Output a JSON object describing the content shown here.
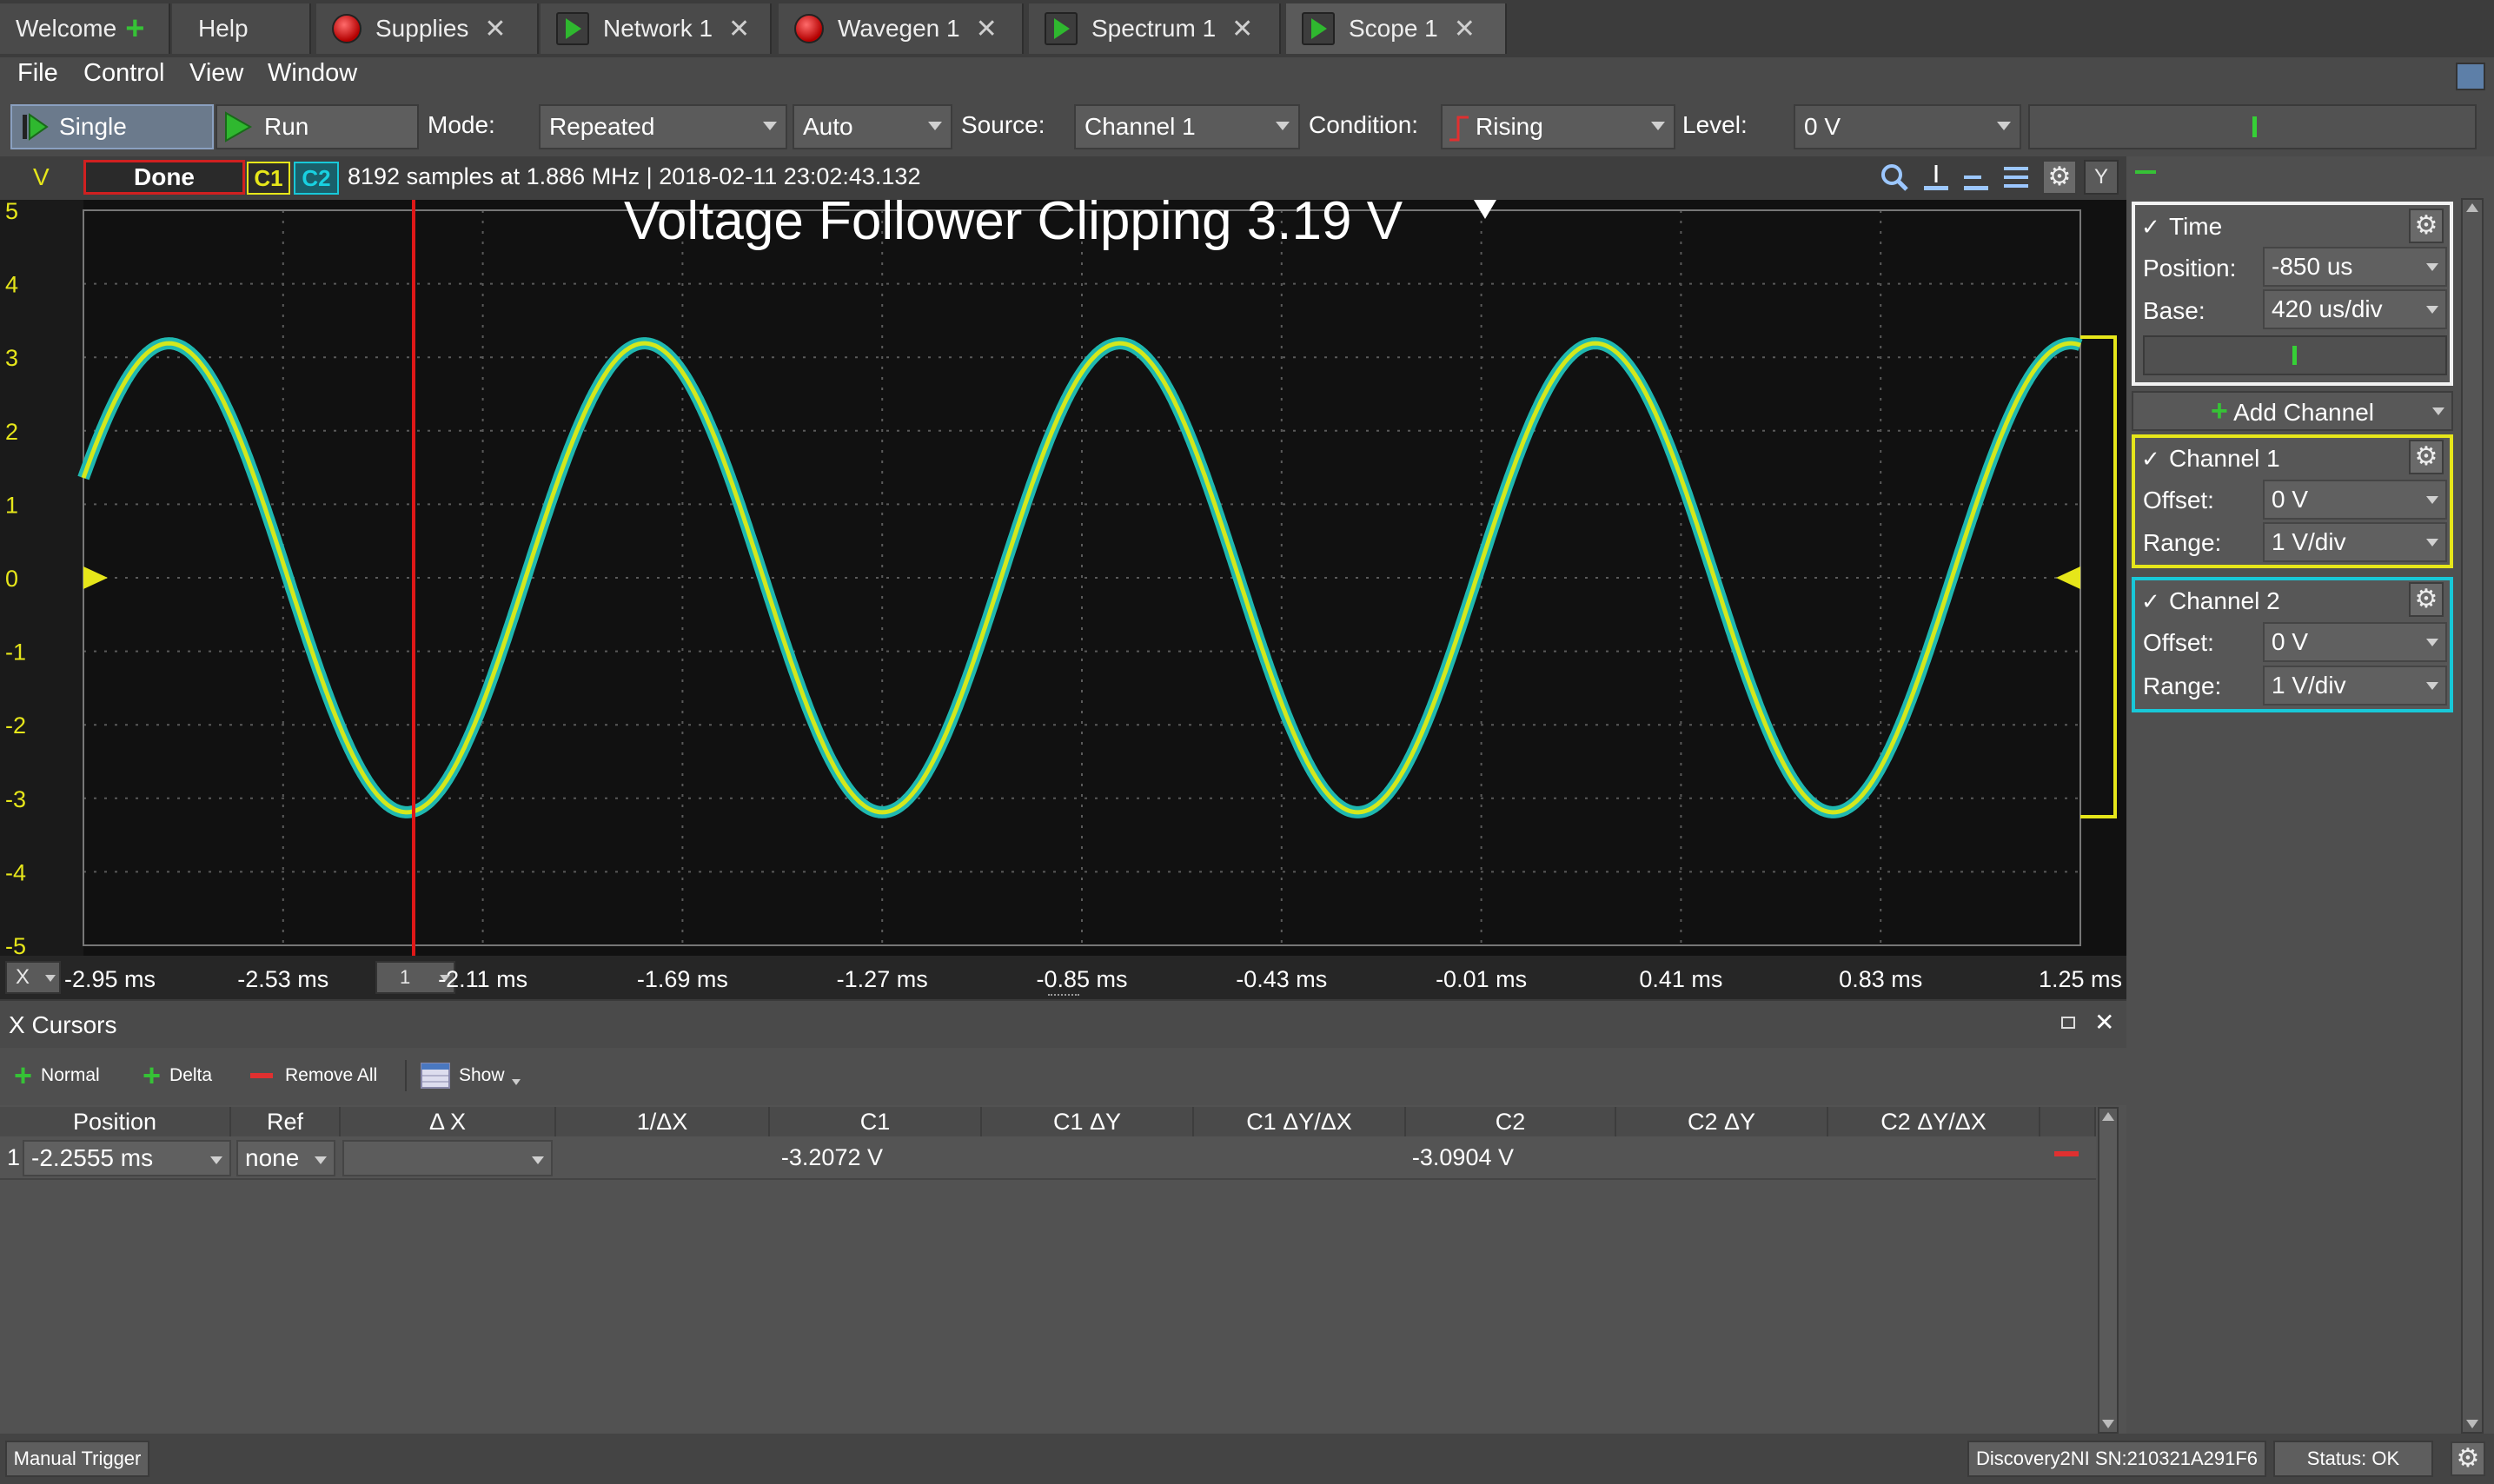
{
  "tabs": [
    {
      "label": "Welcome",
      "icon": "plus-icon",
      "closable": false
    },
    {
      "label": "Help",
      "icon": "",
      "closable": false
    },
    {
      "label": "Supplies",
      "icon": "red-stop-icon",
      "closable": true
    },
    {
      "label": "Network 1",
      "icon": "green-play-icon",
      "closable": true
    },
    {
      "label": "Wavegen 1",
      "icon": "red-stop-icon",
      "closable": true
    },
    {
      "label": "Spectrum 1",
      "icon": "green-play-icon",
      "closable": true
    },
    {
      "label": "Scope 1",
      "icon": "green-play-icon",
      "closable": true
    }
  ],
  "menu": [
    "File",
    "Control",
    "View",
    "Window"
  ],
  "toolbar": {
    "single_label": "Single",
    "run_label": "Run",
    "mode_label": "Mode:",
    "mode_value": "Repeated",
    "auto_value": "Auto",
    "source_label": "Source:",
    "source_value": "Channel 1",
    "condition_label": "Condition:",
    "condition_value": "Rising",
    "level_label": "Level:",
    "level_value": "0 V"
  },
  "scope": {
    "y_unit": "V",
    "status": "Done",
    "c1": "C1",
    "c2": "C2",
    "info": "8192 samples at 1.886 MHz | 2018-02-11 23:02:43.132",
    "y_button": "Y",
    "x_button": "X",
    "x_stepper_value": "1",
    "title": "Voltage Follower Clipping 3.19 V"
  },
  "chart_data": {
    "type": "line",
    "title": "Voltage Follower Clipping 3.19 V",
    "xlabel": "",
    "ylabel": "V",
    "y_ticks": [
      "5",
      "4",
      "3",
      "2",
      "1",
      "0",
      "-1",
      "-2",
      "-3",
      "-4",
      "-5"
    ],
    "x_ticks": [
      "-2.95 ms",
      "-2.53 ms",
      "-2.11 ms",
      "-1.69 ms",
      "-1.27 ms",
      "-0.85 ms",
      "-0.43 ms",
      "-0.01 ms",
      "0.41 ms",
      "0.83 ms",
      "1.25 ms"
    ],
    "xlim_ms": [
      -2.95,
      1.25
    ],
    "ylim": [
      -5,
      5
    ],
    "grid": true,
    "series": [
      {
        "name": "C1",
        "color": "#d4e81c",
        "amplitude": 3.19,
        "period_ms": 1.0,
        "peak_at_ms": -2.77
      },
      {
        "name": "C2",
        "color": "#1fb8b0",
        "amplitude": 3.19,
        "period_ms": 1.0,
        "peak_at_ms": -2.77
      }
    ],
    "cursor_x_ms": -2.2555
  },
  "right_panel": {
    "time": {
      "label": "Time",
      "position_label": "Position:",
      "position_value": "-850 us",
      "base_label": "Base:",
      "base_value": "420 us/div"
    },
    "add_channel": "Add Channel",
    "channel1": {
      "label": "Channel 1",
      "offset_label": "Offset:",
      "offset_value": "0 V",
      "range_label": "Range:",
      "range_value": "1 V/div",
      "color": "#e6e61a"
    },
    "channel2": {
      "label": "Channel 2",
      "offset_label": "Offset:",
      "offset_value": "0 V",
      "range_label": "Range:",
      "range_value": "1 V/div",
      "color": "#18c8d8"
    },
    "check": "✓"
  },
  "cursors": {
    "title": "X Cursors",
    "normal": "Normal",
    "delta": "Delta",
    "remove_all": "Remove All",
    "show": "Show",
    "columns": [
      "Position",
      "Ref",
      "Δ X",
      "1/ΔX",
      "C1",
      "C1 ΔY",
      "C1 ΔY/ΔX",
      "C2",
      "C2 ΔY",
      "C2 ΔY/ΔX"
    ],
    "rows": [
      {
        "index": "1",
        "position": "-2.2555 ms",
        "ref": "none",
        "dx": "",
        "inv_dx": "",
        "c1": "-3.2072 V",
        "c1_dy": "",
        "c1_dydx": "",
        "c2": "-3.0904 V",
        "c2_dy": "",
        "c2_dydx": ""
      }
    ]
  },
  "statusbar": {
    "manual_trigger": "Manual Trigger",
    "device": "Discovery2NI SN:210321A291F6",
    "status": "Status: OK"
  }
}
